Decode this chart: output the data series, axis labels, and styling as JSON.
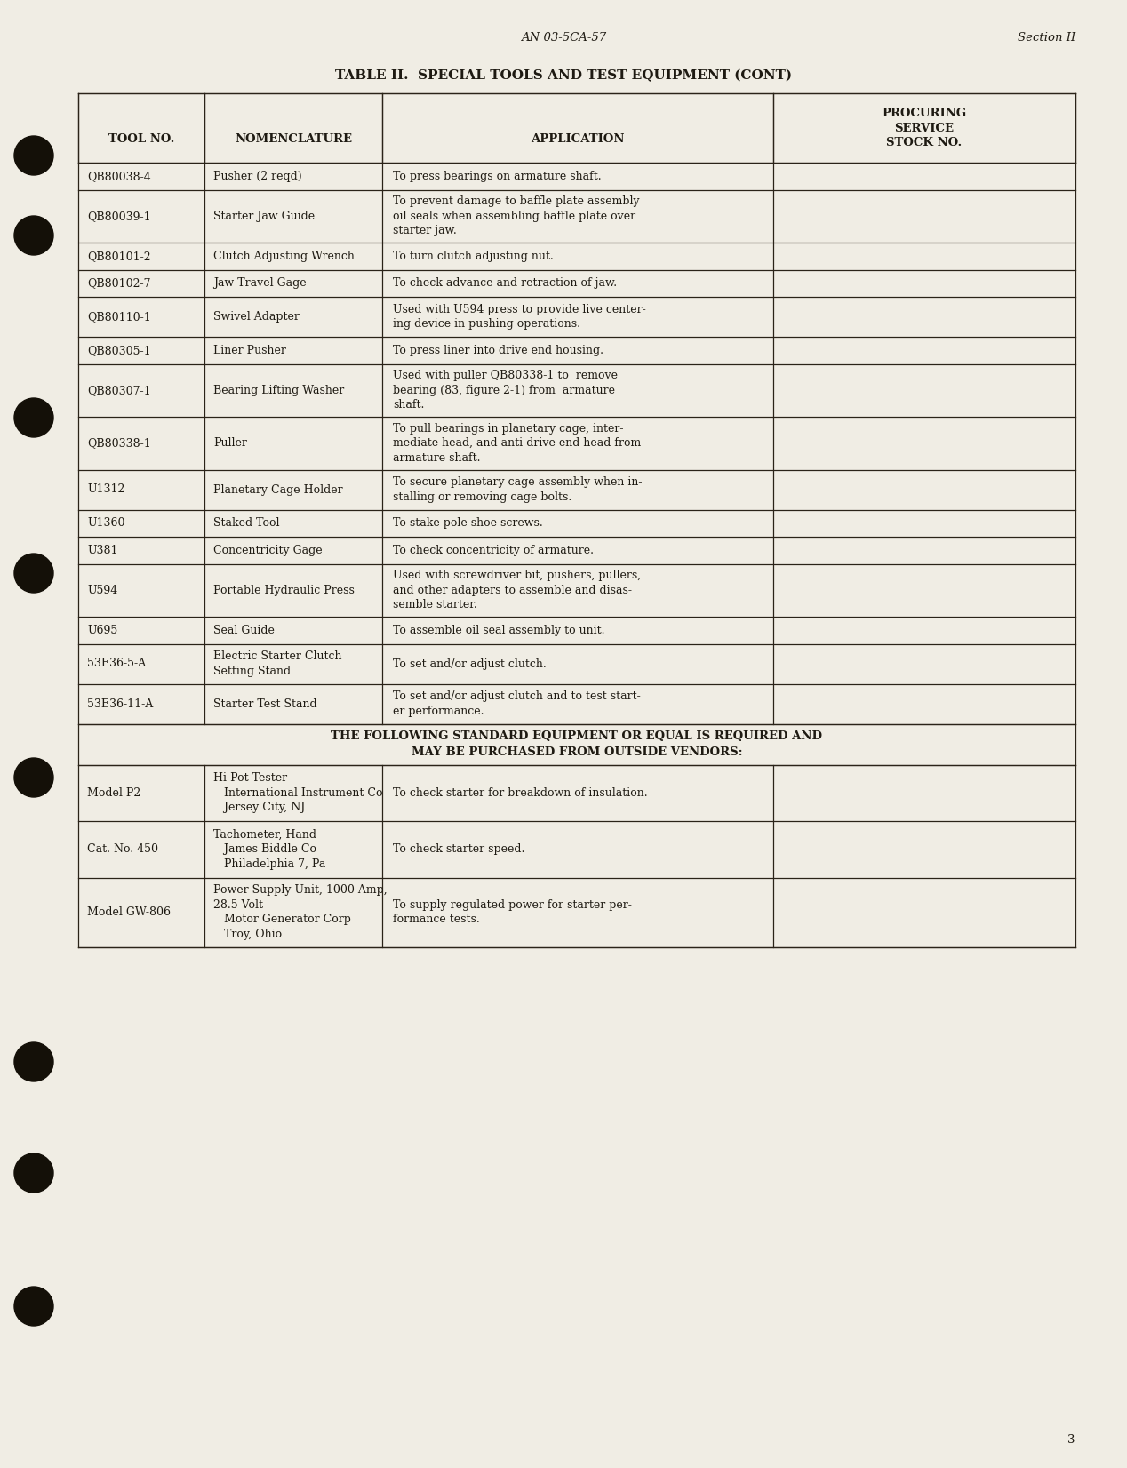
{
  "bg_color": "#f0ede4",
  "text_color": "#1e1a12",
  "header_doc": "AN 03-5CA-57",
  "header_section": "Section II",
  "page_num": "3",
  "table_title": "TABLE II.  SPECIAL TOOLS AND TEST EQUIPMENT (CONT)",
  "col_headers": [
    "TOOL NO.",
    "NOMENCLATURE",
    "APPLICATION",
    "PROCURING\nSERVICE\nSTOCK NO."
  ],
  "rows": [
    {
      "tool": "QB80038-4",
      "nom": "Pusher (2 reqd)",
      "app": "To press bearings on armature shaft.",
      "lines": 1
    },
    {
      "tool": "QB80039-1",
      "nom": "Starter Jaw Guide",
      "app": "To prevent damage to baffle plate assembly\noil seals when assembling baffle plate over\nstarter jaw.",
      "lines": 3
    },
    {
      "tool": "QB80101-2",
      "nom": "Clutch Adjusting Wrench",
      "app": "To turn clutch adjusting nut.",
      "lines": 1
    },
    {
      "tool": "QB80102-7",
      "nom": "Jaw Travel Gage",
      "app": "To check advance and retraction of jaw.",
      "lines": 1
    },
    {
      "tool": "QB80110-1",
      "nom": "Swivel Adapter",
      "app": "Used with U594 press to provide live center-\ning device in pushing operations.",
      "lines": 2
    },
    {
      "tool": "QB80305-1",
      "nom": "Liner Pusher",
      "app": "To press liner into drive end housing.",
      "lines": 1
    },
    {
      "tool": "QB80307-1",
      "nom": "Bearing Lifting Washer",
      "app": "Used with puller QB80338-1 to  remove\nbearing (83, figure 2-1) from  armature\nshaft.",
      "lines": 3
    },
    {
      "tool": "QB80338-1",
      "nom": "Puller",
      "app": "To pull bearings in planetary cage, inter-\nmediate head, and anti-drive end head from\narmature shaft.",
      "lines": 3
    },
    {
      "tool": "U1312",
      "nom": "Planetary Cage Holder",
      "app": "To secure planetary cage assembly when in-\nstalling or removing cage bolts.",
      "lines": 2
    },
    {
      "tool": "U1360",
      "nom": "Staked Tool",
      "app": "To stake pole shoe screws.",
      "lines": 1
    },
    {
      "tool": "U381",
      "nom": "Concentricity Gage",
      "app": "To check concentricity of armature.",
      "lines": 1
    },
    {
      "tool": "U594",
      "nom": "Portable Hydraulic Press",
      "app": "Used with screwdriver bit, pushers, pullers,\nand other adapters to assemble and disas-\nsemble starter.",
      "lines": 3
    },
    {
      "tool": "U695",
      "nom": "Seal Guide",
      "app": "To assemble oil seal assembly to unit.",
      "lines": 1
    },
    {
      "tool": "53E36-5-A",
      "nom": "Electric Starter Clutch\nSetting Stand",
      "app": "To set and/or adjust clutch.",
      "lines": 2
    },
    {
      "tool": "53E36-11-A",
      "nom": "Starter Test Stand",
      "app": "To set and/or adjust clutch and to test start-\ner performance.",
      "lines": 2
    }
  ],
  "separator_text": "THE FOLLOWING STANDARD EQUIPMENT OR EQUAL IS REQUIRED AND\nMAY BE PURCHASED FROM OUTSIDE VENDORS:",
  "bottom_rows": [
    {
      "tool": "Model P2",
      "nom": "Hi-Pot Tester\n   International Instrument Co\n   Jersey City, NJ",
      "app": "To check starter for breakdown of insulation.",
      "lines": 3
    },
    {
      "tool": "Cat. No. 450",
      "nom": "Tachometer, Hand\n   James Biddle Co\n   Philadelphia 7, Pa",
      "app": "To check starter speed.",
      "lines": 3
    },
    {
      "tool": "Model GW-806",
      "nom": "Power Supply Unit, 1000 Amp,\n28.5 Volt\n   Motor Generator Corp\n   Troy, Ohio",
      "app": "To supply regulated power for starter per-\nformance tests.",
      "lines": 4
    }
  ],
  "font_size_body": 9.0,
  "font_size_header_col": 9.5,
  "font_size_title": 11.0,
  "font_size_top": 9.5
}
